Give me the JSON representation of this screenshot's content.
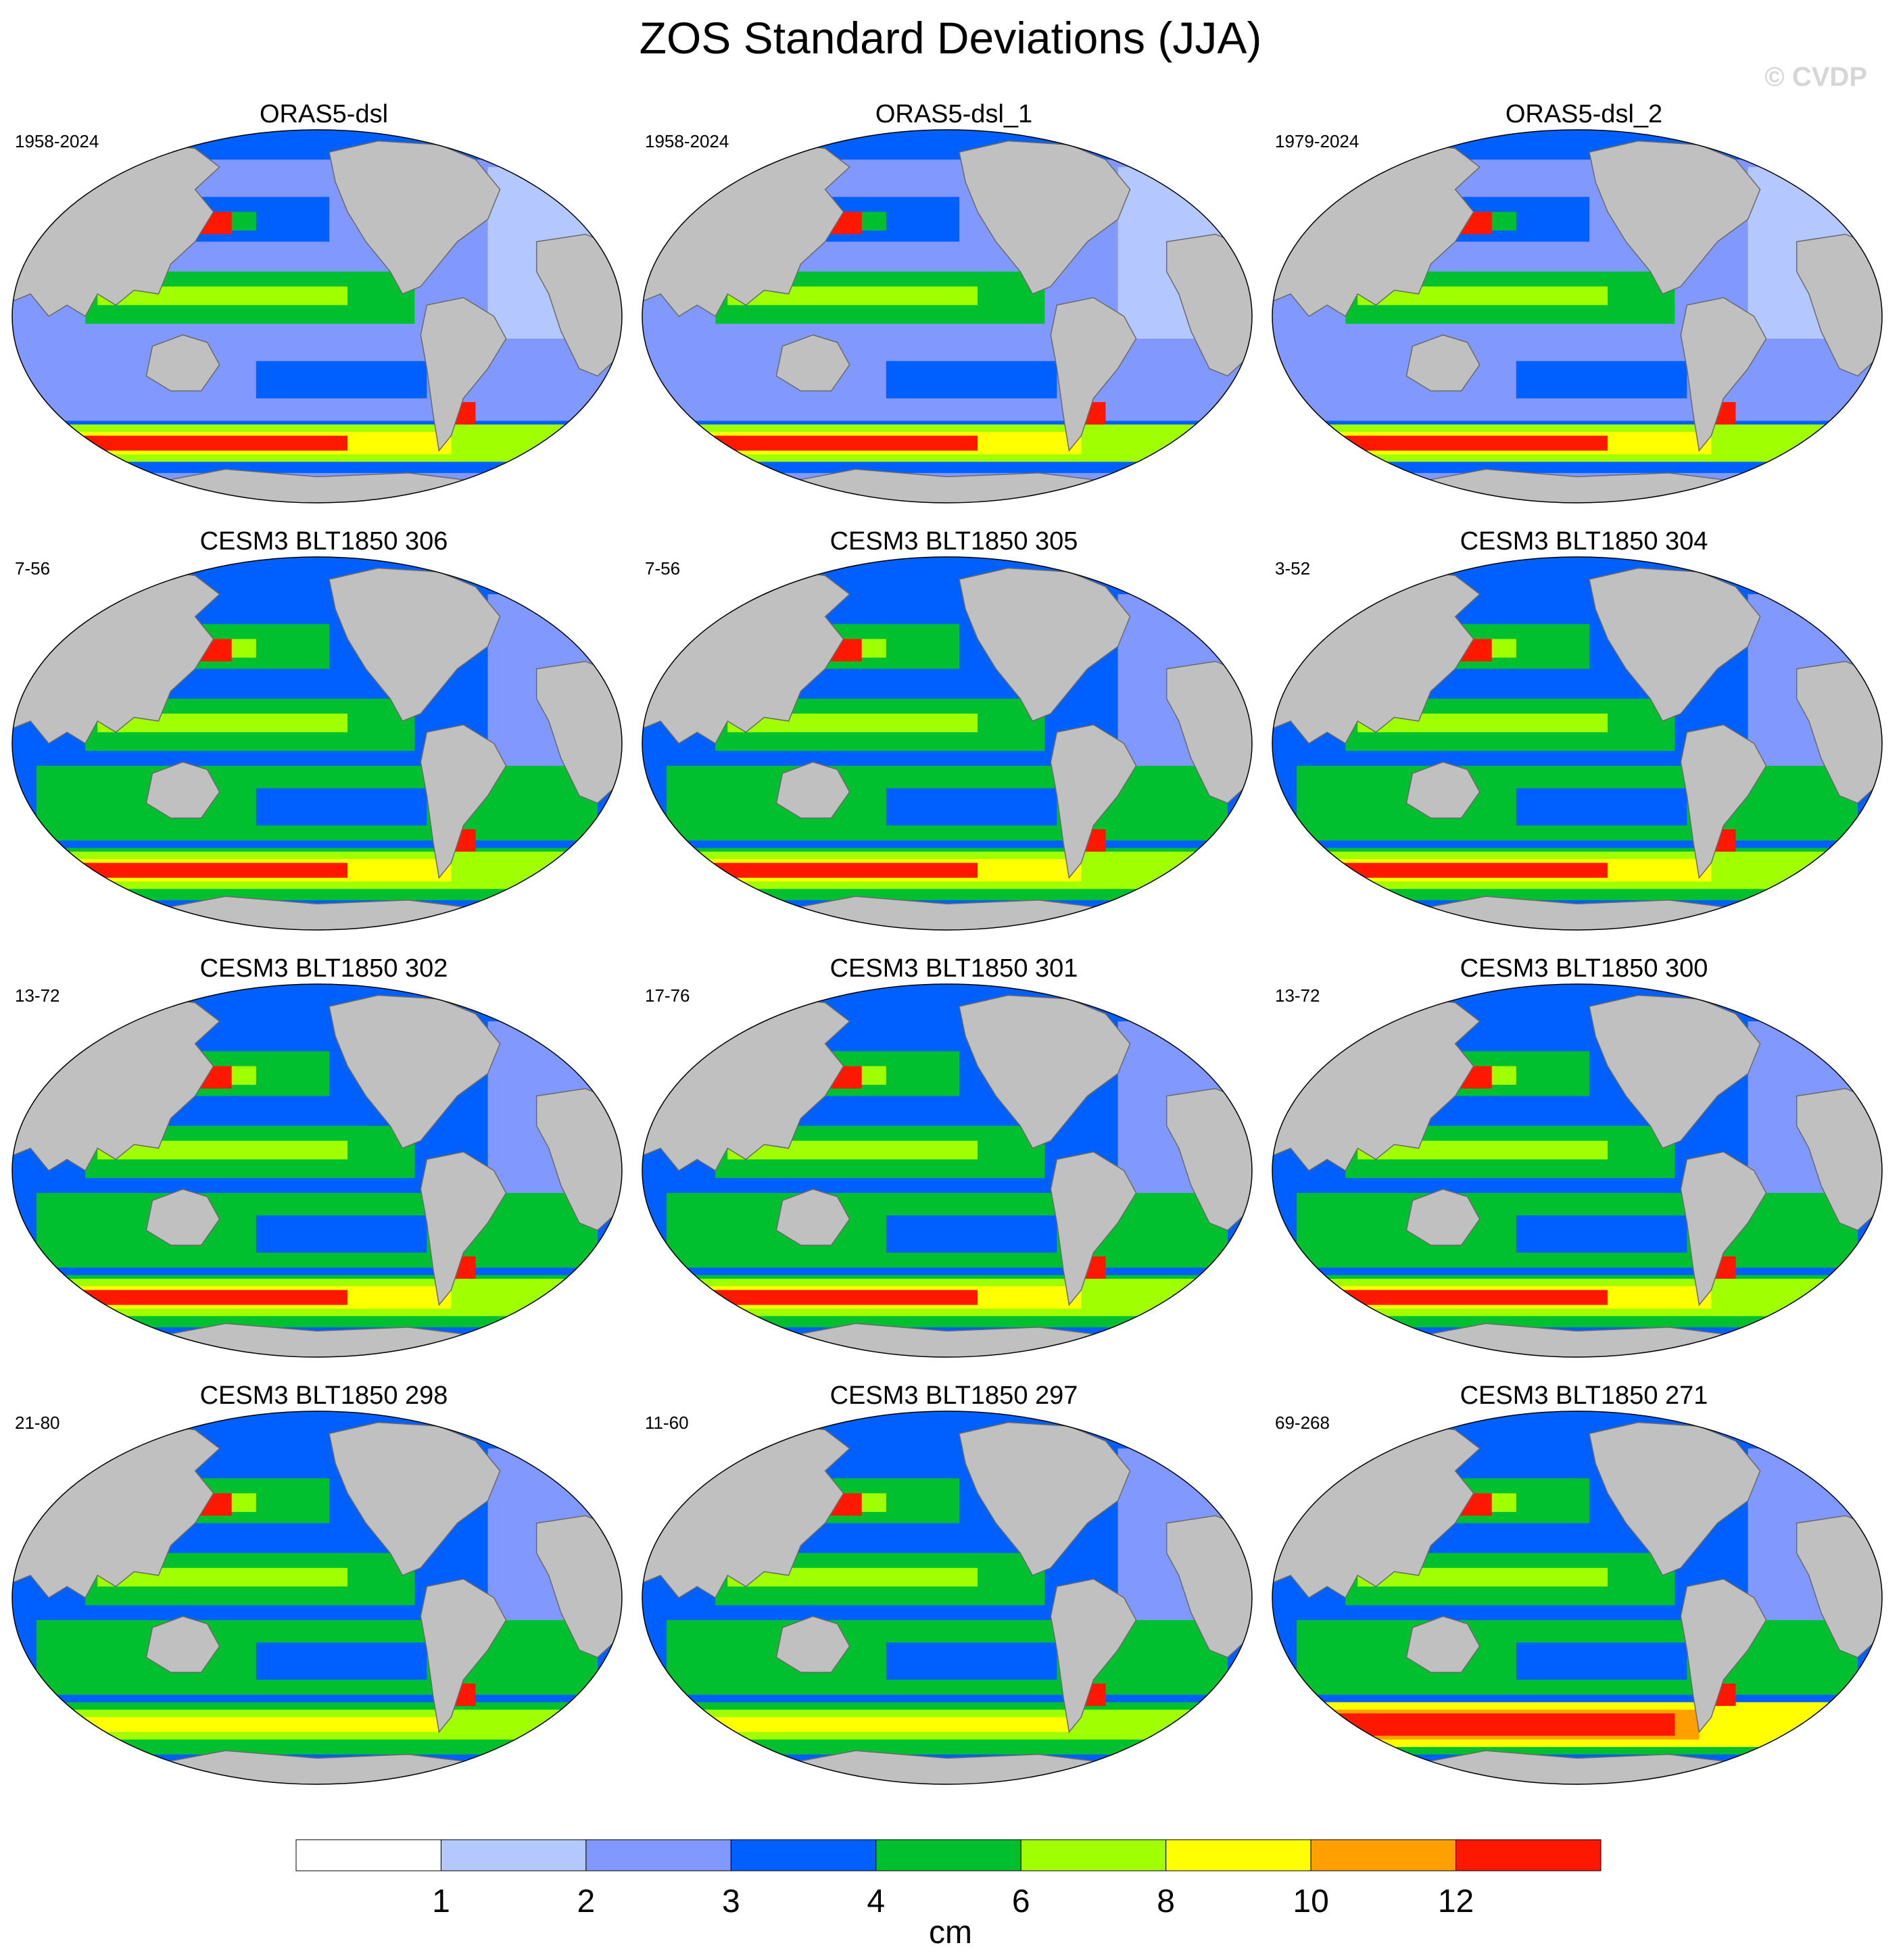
{
  "title": "ZOS Standard Deviations (JJA)",
  "watermark": "© CVDP",
  "panels": [
    {
      "title": "ORAS5-dsl",
      "years": "1958-2024",
      "kind": "obs",
      "south_ocean": "high"
    },
    {
      "title": "ORAS5-dsl_1",
      "years": "1958-2024",
      "kind": "obs",
      "south_ocean": "high"
    },
    {
      "title": "ORAS5-dsl_2",
      "years": "1979-2024",
      "kind": "obs",
      "south_ocean": "high"
    },
    {
      "title": "CESM3 BLT1850 306",
      "years": "7-56",
      "kind": "model",
      "south_ocean": "high"
    },
    {
      "title": "CESM3 BLT1850 305",
      "years": "7-56",
      "kind": "model",
      "south_ocean": "high"
    },
    {
      "title": "CESM3 BLT1850 304",
      "years": "3-52",
      "kind": "model",
      "south_ocean": "high"
    },
    {
      "title": "CESM3 BLT1850 302",
      "years": "13-72",
      "kind": "model",
      "south_ocean": "high"
    },
    {
      "title": "CESM3 BLT1850 301",
      "years": "17-76",
      "kind": "model",
      "south_ocean": "high"
    },
    {
      "title": "CESM3 BLT1850 300",
      "years": "13-72",
      "kind": "model",
      "south_ocean": "high"
    },
    {
      "title": "CESM3 BLT1850 298",
      "years": "21-80",
      "kind": "model",
      "south_ocean": "moderate"
    },
    {
      "title": "CESM3 BLT1850 297",
      "years": "11-60",
      "kind": "model",
      "south_ocean": "moderate"
    },
    {
      "title": "CESM3 BLT1850 271",
      "years": "69-268",
      "kind": "model",
      "south_ocean": "very-high"
    }
  ],
  "colorbar": {
    "units": "cm",
    "levels": [
      1,
      2,
      3,
      4,
      6,
      8,
      10,
      12
    ],
    "level_labels": [
      "1",
      "2",
      "3",
      "4",
      "6",
      "8",
      "10",
      "12"
    ],
    "colors": [
      "#ffffff",
      "#b4c8ff",
      "#8098ff",
      "#0060ff",
      "#00c030",
      "#a0ff00",
      "#ffff00",
      "#ffa000",
      "#ff1800"
    ]
  },
  "colors": {
    "land": "#c0c0c0",
    "coast": "#6a6a6a"
  }
}
